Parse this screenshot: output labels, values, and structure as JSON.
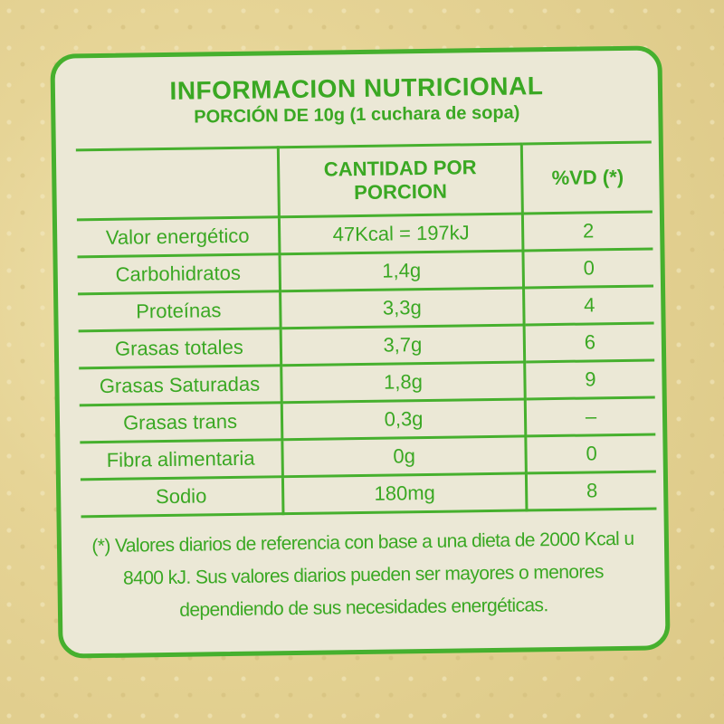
{
  "title": "INFORMACION NUTRICIONAL",
  "subtitle": "PORCIÓN DE 10g (1 cuchara de sopa)",
  "headers": [
    "",
    "CANTIDAD POR PORCION",
    "%VD (*)"
  ],
  "rows": [
    {
      "name": "Valor energético",
      "amount": "47Kcal = 197kJ",
      "vd": "2"
    },
    {
      "name": "Carbohidratos",
      "amount": "1,4g",
      "vd": "0"
    },
    {
      "name": "Proteínas",
      "amount": "3,3g",
      "vd": "4"
    },
    {
      "name": "Grasas totales",
      "amount": "3,7g",
      "vd": "6"
    },
    {
      "name": "Grasas Saturadas",
      "amount": "1,8g",
      "vd": "9"
    },
    {
      "name": "Grasas trans",
      "amount": "0,3g",
      "vd": "–"
    },
    {
      "name": "Fibra alimentaria",
      "amount": "0g",
      "vd": "0"
    },
    {
      "name": "Sodio",
      "amount": "180mg",
      "vd": "8"
    }
  ],
  "footnote": "(*) Valores diarios de referencia con base a una dieta de 2000 Kcal u 8400 kJ. Sus valores diarios pueden ser mayores o menores dependiendo de sus necesidades energéticas.",
  "colors": {
    "green": "#46b02e",
    "label_bg": "#ebe8d6",
    "background": "#e6d496"
  }
}
